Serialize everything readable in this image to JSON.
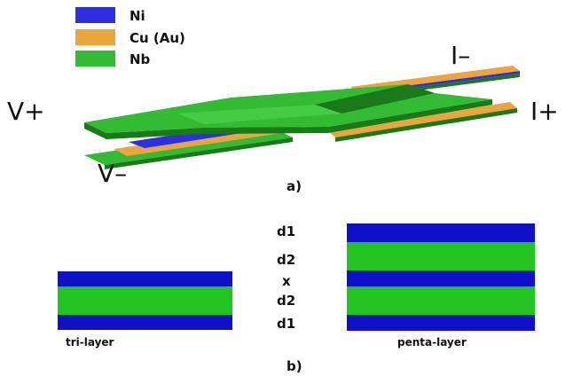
{
  "colors": {
    "ni": "#2f2fe0",
    "cu": "#eaa63c",
    "nb": "#33bb33",
    "nb_dark": "#1a7a1a",
    "nb_light": "#44cc44",
    "stack_blue": "#1010c8",
    "stack_green": "#22c422"
  },
  "legend": [
    {
      "key": "ni",
      "label": "Ni"
    },
    {
      "key": "cu",
      "label": "Cu (Au)"
    },
    {
      "key": "nb",
      "label": "Nb"
    }
  ],
  "terminals": {
    "v_plus": "V+",
    "v_minus": "V–",
    "i_minus": "I–",
    "i_plus": "I+"
  },
  "panel_a_label": "a)",
  "panel_b_label": "b)",
  "layer_labels": [
    "d1",
    "d2",
    "x",
    "d2",
    "d1"
  ],
  "trilayer": {
    "caption": "tri-layer",
    "layers": [
      "stack_blue",
      "stack_green",
      "stack_blue"
    ]
  },
  "pentalayer": {
    "caption": "penta-layer",
    "layers": [
      "stack_blue",
      "stack_green",
      "stack_blue",
      "stack_green",
      "stack_blue"
    ]
  }
}
